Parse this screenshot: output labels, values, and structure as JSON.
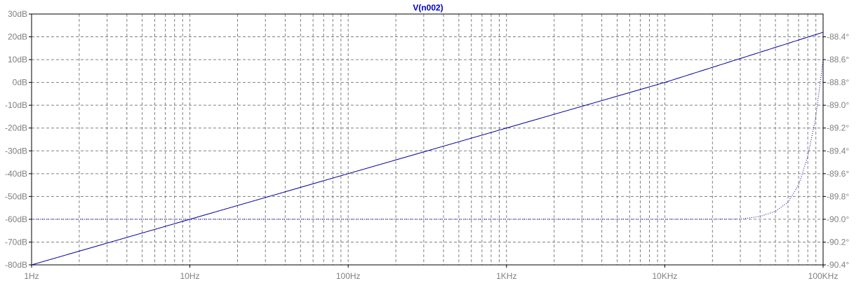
{
  "title": "V(n002)",
  "colors": {
    "background": "#ffffff",
    "frame": "#000000",
    "grid": "#808080",
    "label": "#808080",
    "trace": "#0000a0",
    "title": "#0000cc"
  },
  "chart_data": {
    "type": "line",
    "title": "V(n002)",
    "grid": true,
    "x_axis": {
      "scale": "log",
      "unit": "Hz",
      "range": [
        1,
        100000
      ],
      "tick_labels": [
        "1Hz",
        "10Hz",
        "100Hz",
        "1KHz",
        "10KHz",
        "100KHz"
      ]
    },
    "y_axis_left": {
      "quantity": "magnitude",
      "unit": "dB",
      "range": [
        -80,
        30
      ],
      "tick_labels": [
        "30dB",
        "20dB",
        "10dB",
        "0dB",
        "-10dB",
        "-20dB",
        "-30dB",
        "-40dB",
        "-50dB",
        "-60dB",
        "-70dB",
        "-80dB"
      ]
    },
    "y_axis_right": {
      "quantity": "phase",
      "unit": "°",
      "range": [
        -90.4,
        -88.2
      ],
      "tick_labels": [
        "-88.4°",
        "-88.6°",
        "-88.8°",
        "-89.0°",
        "-89.2°",
        "-89.4°",
        "-89.6°",
        "-89.8°",
        "-90.0°",
        "-90.2°",
        "-90.4°"
      ]
    },
    "series": [
      {
        "quantity": "magnitude",
        "axis": "left",
        "style": "solid",
        "x": [
          1,
          10,
          100,
          1000,
          10000,
          100000
        ],
        "y": [
          -80,
          -60,
          -40,
          -20,
          0,
          22
        ]
      },
      {
        "quantity": "phase",
        "axis": "right",
        "style": "dotted",
        "x": [
          1,
          10,
          100,
          1000,
          10000,
          30000,
          40000,
          50000,
          60000,
          70000,
          80000,
          90000,
          100000
        ],
        "y": [
          -90.0,
          -90.0,
          -90.0,
          -90.0,
          -90.0,
          -89.999,
          -89.975,
          -89.93,
          -89.85,
          -89.7,
          -89.45,
          -89.1,
          -88.6
        ]
      }
    ]
  }
}
